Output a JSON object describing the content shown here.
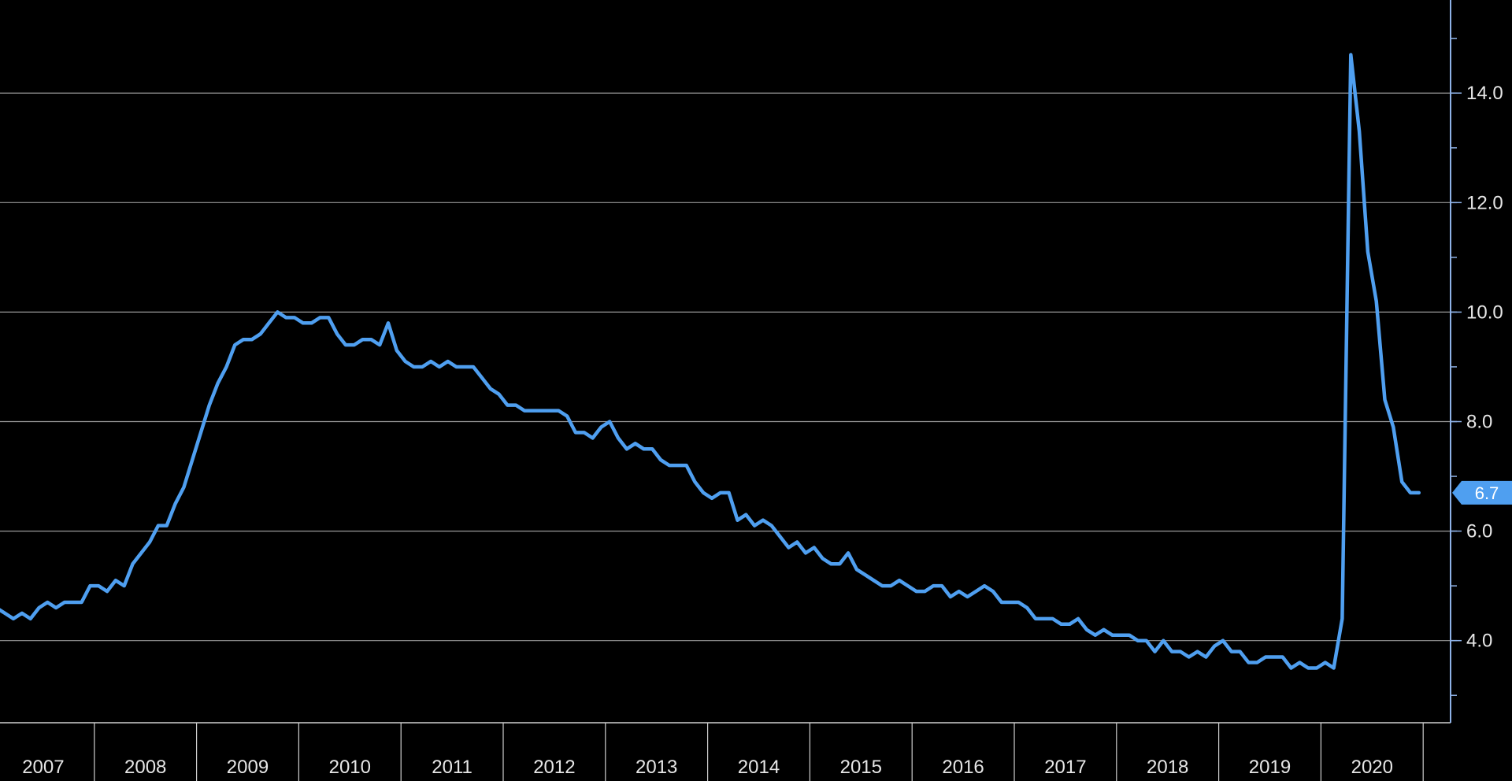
{
  "chart_data": {
    "type": "line",
    "title": "",
    "xlabel": "",
    "ylabel": "",
    "ylim": [
      2.5,
      15.7
    ],
    "xlim": [
      "2007-01",
      "2020-12"
    ],
    "y_axis_position": "right",
    "y_ticks": [
      "4.0",
      "6.0",
      "8.0",
      "10.0",
      "12.0",
      "14.0"
    ],
    "x_tick_labels": [
      "2007",
      "2008",
      "2009",
      "2010",
      "2011",
      "2012",
      "2013",
      "2014",
      "2015",
      "2016",
      "2017",
      "2018",
      "2019",
      "2020"
    ],
    "grid": "horizontal",
    "line_color": "#4f9ff0",
    "last_value_label": "6.7",
    "series": [
      {
        "x": [
          "2007-01",
          "2007-02",
          "2007-03",
          "2007-04",
          "2007-05",
          "2007-06",
          "2007-07",
          "2007-08",
          "2007-09",
          "2007-10",
          "2007-11",
          "2007-12",
          "2008-01",
          "2008-02",
          "2008-03",
          "2008-04",
          "2008-05",
          "2008-06",
          "2008-07",
          "2008-08",
          "2008-09",
          "2008-10",
          "2008-11",
          "2008-12",
          "2009-01",
          "2009-02",
          "2009-03",
          "2009-04",
          "2009-05",
          "2009-06",
          "2009-07",
          "2009-08",
          "2009-09",
          "2009-10",
          "2009-11",
          "2009-12",
          "2010-01",
          "2010-02",
          "2010-03",
          "2010-04",
          "2010-05",
          "2010-06",
          "2010-07",
          "2010-08",
          "2010-09",
          "2010-10",
          "2010-11",
          "2010-12",
          "2011-01",
          "2011-02",
          "2011-03",
          "2011-04",
          "2011-05",
          "2011-06",
          "2011-07",
          "2011-08",
          "2011-09",
          "2011-10",
          "2011-11",
          "2011-12",
          "2012-01",
          "2012-02",
          "2012-03",
          "2012-04",
          "2012-05",
          "2012-06",
          "2012-07",
          "2012-08",
          "2012-09",
          "2012-10",
          "2012-11",
          "2012-12",
          "2013-01",
          "2013-02",
          "2013-03",
          "2013-04",
          "2013-05",
          "2013-06",
          "2013-07",
          "2013-08",
          "2013-09",
          "2013-10",
          "2013-11",
          "2013-12",
          "2014-01",
          "2014-02",
          "2014-03",
          "2014-04",
          "2014-05",
          "2014-06",
          "2014-07",
          "2014-08",
          "2014-09",
          "2014-10",
          "2014-11",
          "2014-12",
          "2015-01",
          "2015-02",
          "2015-03",
          "2015-04",
          "2015-05",
          "2015-06",
          "2015-07",
          "2015-08",
          "2015-09",
          "2015-10",
          "2015-11",
          "2015-12",
          "2016-01",
          "2016-02",
          "2016-03",
          "2016-04",
          "2016-05",
          "2016-06",
          "2016-07",
          "2016-08",
          "2016-09",
          "2016-10",
          "2016-11",
          "2016-12",
          "2017-01",
          "2017-02",
          "2017-03",
          "2017-04",
          "2017-05",
          "2017-06",
          "2017-07",
          "2017-08",
          "2017-09",
          "2017-10",
          "2017-11",
          "2017-12",
          "2018-01",
          "2018-02",
          "2018-03",
          "2018-04",
          "2018-05",
          "2018-06",
          "2018-07",
          "2018-08",
          "2018-09",
          "2018-10",
          "2018-11",
          "2018-12",
          "2019-01",
          "2019-02",
          "2019-03",
          "2019-04",
          "2019-05",
          "2019-06",
          "2019-07",
          "2019-08",
          "2019-09",
          "2019-10",
          "2019-11",
          "2019-12",
          "2020-01",
          "2020-02",
          "2020-03",
          "2020-04",
          "2020-05",
          "2020-06",
          "2020-07",
          "2020-08",
          "2020-09",
          "2020-10",
          "2020-11",
          "2020-12"
        ],
        "y": [
          4.6,
          4.5,
          4.4,
          4.5,
          4.4,
          4.6,
          4.7,
          4.6,
          4.7,
          4.7,
          4.7,
          5.0,
          5.0,
          4.9,
          5.1,
          5.0,
          5.4,
          5.6,
          5.8,
          6.1,
          6.1,
          6.5,
          6.8,
          7.3,
          7.8,
          8.3,
          8.7,
          9.0,
          9.4,
          9.5,
          9.5,
          9.6,
          9.8,
          10.0,
          9.9,
          9.9,
          9.8,
          9.8,
          9.9,
          9.9,
          9.6,
          9.4,
          9.4,
          9.5,
          9.5,
          9.4,
          9.8,
          9.3,
          9.1,
          9.0,
          9.0,
          9.1,
          9.0,
          9.1,
          9.0,
          9.0,
          9.0,
          8.8,
          8.6,
          8.5,
          8.3,
          8.3,
          8.2,
          8.2,
          8.2,
          8.2,
          8.2,
          8.1,
          7.8,
          7.8,
          7.7,
          7.9,
          8.0,
          7.7,
          7.5,
          7.6,
          7.5,
          7.5,
          7.3,
          7.2,
          7.2,
          7.2,
          6.9,
          6.7,
          6.6,
          6.7,
          6.7,
          6.2,
          6.3,
          6.1,
          6.2,
          6.1,
          5.9,
          5.7,
          5.8,
          5.6,
          5.7,
          5.5,
          5.4,
          5.4,
          5.6,
          5.3,
          5.2,
          5.1,
          5.0,
          5.0,
          5.1,
          5.0,
          4.9,
          4.9,
          5.0,
          5.0,
          4.8,
          4.9,
          4.8,
          4.9,
          5.0,
          4.9,
          4.7,
          4.7,
          4.7,
          4.6,
          4.4,
          4.4,
          4.4,
          4.3,
          4.3,
          4.4,
          4.2,
          4.1,
          4.2,
          4.1,
          4.1,
          4.1,
          4.0,
          4.0,
          3.8,
          4.0,
          3.8,
          3.8,
          3.7,
          3.8,
          3.7,
          3.9,
          4.0,
          3.8,
          3.8,
          3.6,
          3.6,
          3.7,
          3.7,
          3.7,
          3.5,
          3.6,
          3.5,
          3.5,
          3.6,
          3.5,
          4.4,
          14.7,
          13.3,
          11.1,
          10.2,
          8.4,
          7.9,
          6.9,
          6.7,
          6.7
        ]
      }
    ]
  }
}
